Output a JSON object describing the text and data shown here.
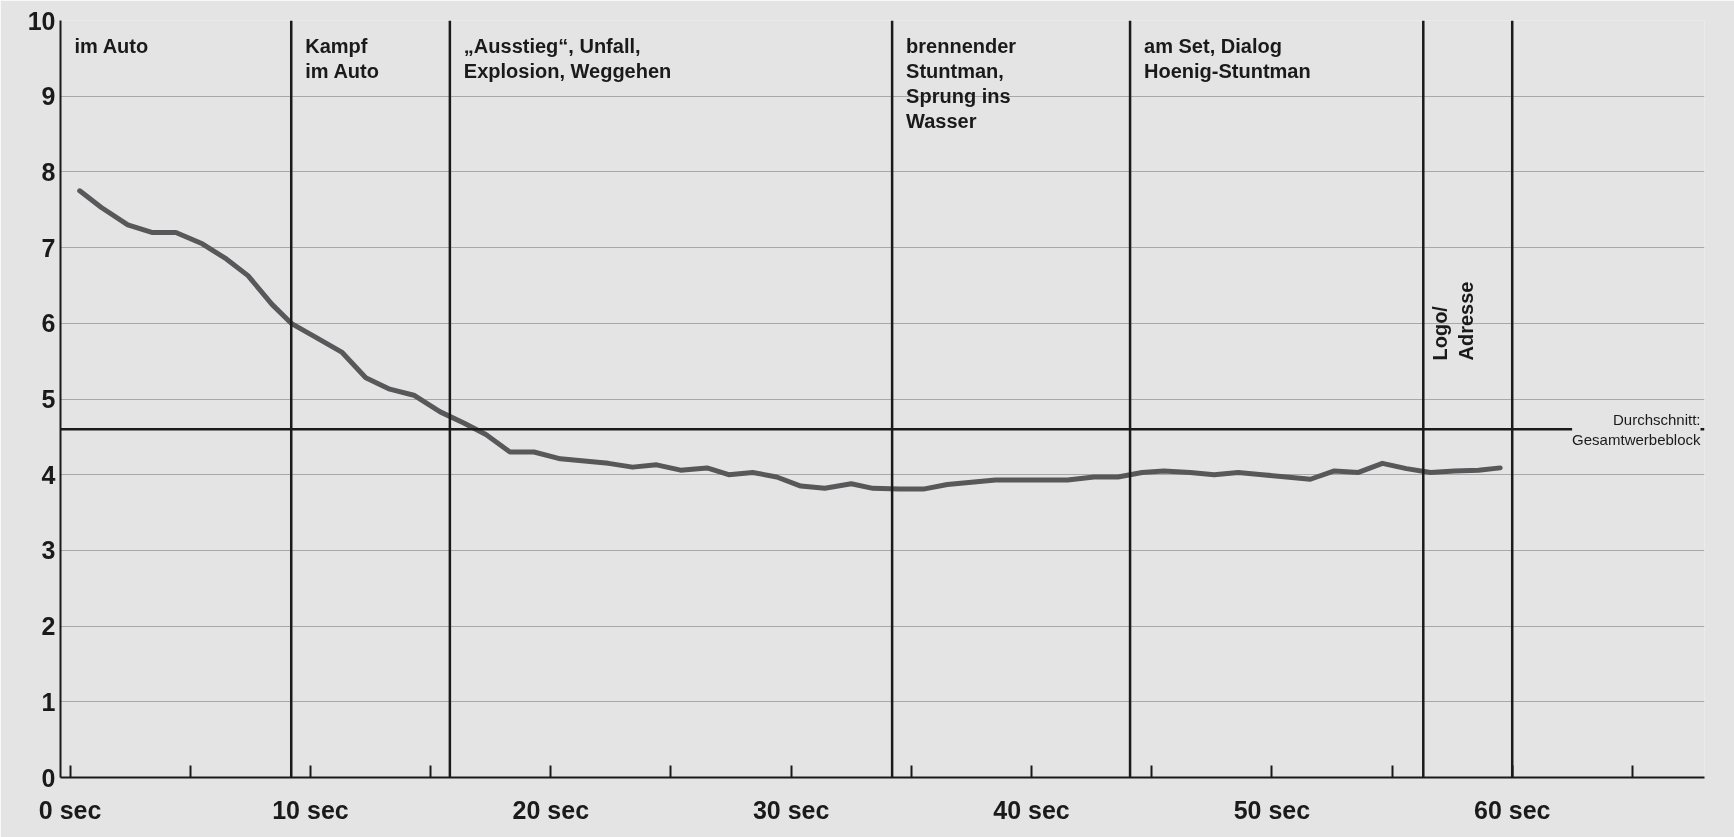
{
  "chart_data": {
    "type": "line",
    "xlim": [
      -0.4,
      68
    ],
    "ylim": [
      0,
      10
    ],
    "xticks": [
      {
        "value": 0,
        "label": "0 sec"
      },
      {
        "value": 5,
        "label": null
      },
      {
        "value": 10,
        "label": "10 sec"
      },
      {
        "value": 15,
        "label": null
      },
      {
        "value": 20,
        "label": "20 sec"
      },
      {
        "value": 25,
        "label": null
      },
      {
        "value": 30,
        "label": "30 sec"
      },
      {
        "value": 35,
        "label": null
      },
      {
        "value": 40,
        "label": "40 sec"
      },
      {
        "value": 45,
        "label": null
      },
      {
        "value": 50,
        "label": "50 sec"
      },
      {
        "value": 55,
        "label": null
      },
      {
        "value": 60,
        "label": "60 sec"
      },
      {
        "value": 65,
        "label": null
      }
    ],
    "yticks": [
      0,
      1,
      2,
      3,
      4,
      5,
      6,
      7,
      8,
      9,
      10
    ],
    "grid": "y",
    "marker": "none",
    "line_style": "solid",
    "series": [
      {
        "color": "#58585a",
        "x": [
          0.4,
          1.3,
          2.4,
          3.4,
          4.4,
          5.5,
          6.5,
          7.4,
          8.4,
          9.2,
          10.3,
          11.3,
          12.3,
          13.3,
          14.3,
          15.4,
          16.4,
          17.3,
          18.3,
          19.3,
          20.4,
          21.4,
          22.4,
          23.4,
          24.4,
          25.4,
          26.5,
          27.4,
          28.4,
          29.4,
          30.4,
          31.4,
          32.5,
          33.4,
          34.5,
          35.5,
          36.5,
          37.5,
          38.5,
          39.5,
          40.6,
          41.5,
          42.6,
          43.6,
          44.6,
          45.5,
          46.6,
          47.6,
          48.6,
          49.6,
          50.6,
          51.6,
          52.6,
          53.6,
          54.6,
          55.6,
          56.6,
          57.6,
          58.6,
          59.5
        ],
        "values": [
          7.75,
          7.53,
          7.3,
          7.2,
          7.2,
          7.05,
          6.85,
          6.63,
          6.25,
          6.0,
          5.8,
          5.62,
          5.28,
          5.13,
          5.05,
          4.83,
          4.68,
          4.53,
          4.3,
          4.3,
          4.21,
          4.18,
          4.15,
          4.1,
          4.13,
          4.06,
          4.09,
          4.0,
          4.03,
          3.97,
          3.85,
          3.82,
          3.88,
          3.82,
          3.81,
          3.81,
          3.87,
          3.9,
          3.93,
          3.93,
          3.93,
          3.93,
          3.97,
          3.97,
          4.03,
          4.05,
          4.03,
          4.0,
          4.03,
          4.0,
          3.97,
          3.94,
          4.05,
          4.03,
          4.15,
          4.08,
          4.03,
          4.05,
          4.06,
          4.09
        ]
      }
    ],
    "ref_lines": [
      {
        "axis": "y",
        "value": 4.6,
        "label": "Durchschnitt:\nGesamtwerbeblock",
        "color": "#1a1a1a"
      },
      {
        "axis": "x",
        "value": 9.2,
        "color": "#1a1a1a"
      },
      {
        "axis": "x",
        "value": 15.8,
        "color": "#1a1a1a"
      },
      {
        "axis": "x",
        "value": 34.2,
        "color": "#1a1a1a"
      },
      {
        "axis": "x",
        "value": 44.1,
        "color": "#1a1a1a"
      },
      {
        "axis": "x",
        "value": 56.3,
        "color": "#1a1a1a"
      },
      {
        "axis": "x",
        "value": 60,
        "color": "#1a1a1a"
      }
    ],
    "annotations": [
      "im Auto",
      "Kampf\nim Auto",
      "„Ausstieg“, Unfall,\nExplosion, Weggehen",
      "brennender\nStuntman,\nSprung ins\nWasser",
      "am Set, Dialog\nHoenig-Stuntman",
      "Logo/\nAdresse"
    ]
  }
}
